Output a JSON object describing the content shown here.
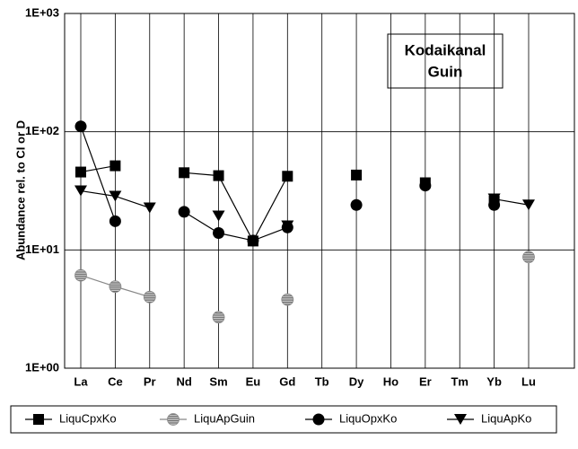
{
  "chart_data": {
    "type": "line",
    "y_label": "Abundance rel. to CI or D",
    "annotation": [
      "Kodaikanal",
      "Guin"
    ],
    "categories": [
      "La",
      "Ce",
      "Pr",
      "Nd",
      "Sm",
      "Eu",
      "Gd",
      "Tb",
      "Dy",
      "Ho",
      "Er",
      "Tm",
      "Yb",
      "Lu"
    ],
    "log_y": true,
    "ylim": [
      1,
      1000
    ],
    "yticks": [
      {
        "value": 1,
        "label": "1E+00"
      },
      {
        "value": 10,
        "label": "1E+01"
      },
      {
        "value": 100,
        "label": "1E+02"
      },
      {
        "value": 1000,
        "label": "1E+03"
      }
    ],
    "grid": true,
    "legend": "bottom",
    "series": [
      {
        "name": "LiquCpxKo",
        "color": "#000000",
        "marker": "square",
        "values": [
          45.6,
          51.5,
          null,
          45,
          42.5,
          11.9,
          42,
          null,
          43,
          null,
          37,
          null,
          26,
          null
        ]
      },
      {
        "name": "LiquApGuin",
        "color": "#888888",
        "marker": "hatched-circle",
        "values": [
          6.1,
          4.9,
          4.0,
          null,
          2.7,
          null,
          3.8,
          null,
          null,
          null,
          null,
          null,
          null,
          8.7
        ]
      },
      {
        "name": "LiquOpxKo",
        "color": "#000000",
        "marker": "circle",
        "values": [
          111,
          17.5,
          null,
          21,
          13.9,
          12,
          15.5,
          null,
          24,
          null,
          35,
          null,
          24,
          null
        ]
      },
      {
        "name": "LiquApKo",
        "color": "#000000",
        "marker": "triangle",
        "values": [
          31.6,
          28.5,
          22.7,
          null,
          19.4,
          null,
          16,
          null,
          null,
          null,
          null,
          null,
          27,
          24
        ]
      }
    ]
  }
}
